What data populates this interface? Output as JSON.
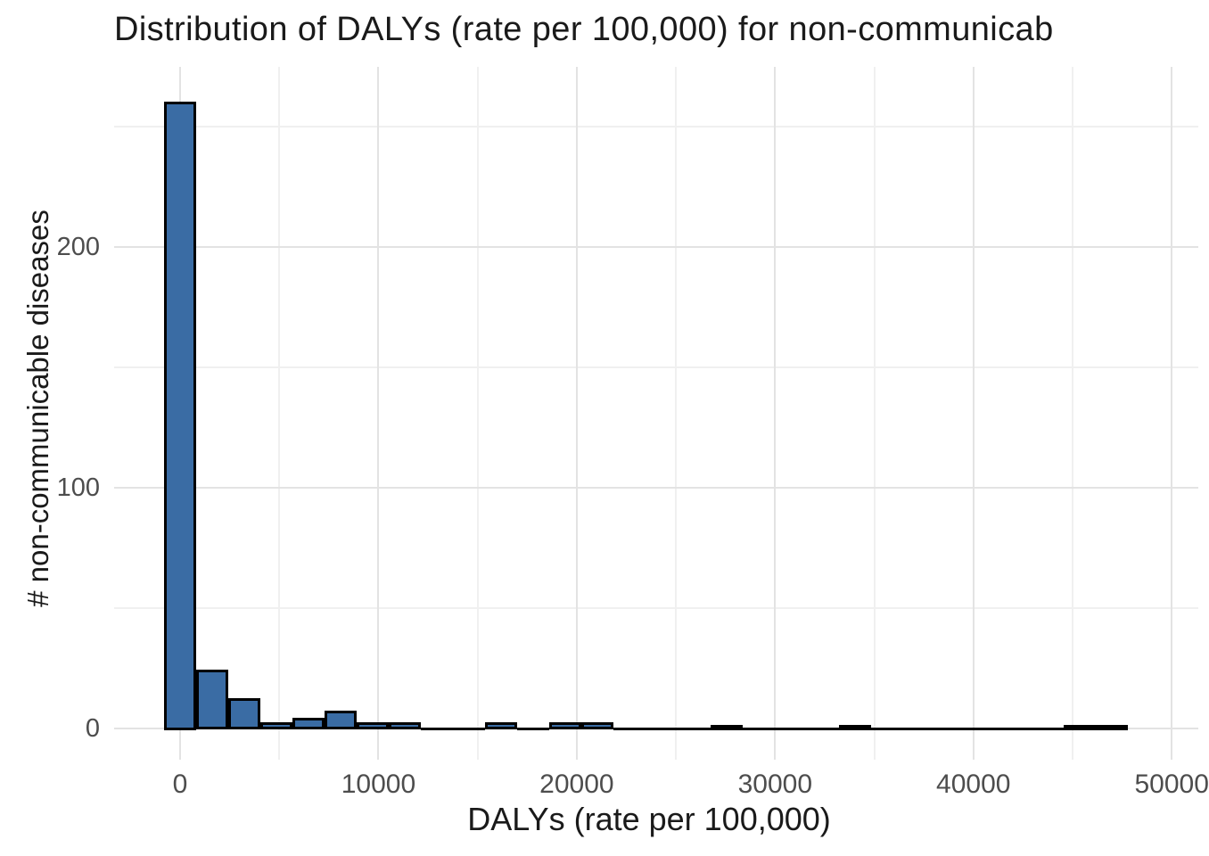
{
  "chart_data": {
    "type": "bar",
    "subtype": "histogram",
    "title": "Distribution of DALYs (rate per 100,000) for non-communicab",
    "xlabel": "DALYs (rate per 100,000)",
    "ylabel": "# non-communicable diseases",
    "bin_width": 1620,
    "bin_centers": [
      0,
      1620,
      3240,
      4860,
      6480,
      8100,
      9720,
      11340,
      12960,
      14580,
      16200,
      17820,
      19440,
      21060,
      22680,
      24300,
      25920,
      27540,
      29160,
      30780,
      32400,
      34020,
      35640,
      37260,
      38880,
      40500,
      42120,
      43740,
      45360,
      46980
    ],
    "counts": [
      260,
      24,
      12,
      2,
      4,
      7,
      2,
      2,
      0,
      0,
      2,
      0,
      2,
      2,
      0,
      0,
      0,
      1,
      0,
      0,
      0,
      1,
      0,
      0,
      0,
      0,
      0,
      0,
      1,
      1
    ],
    "x_ticks": [
      0,
      10000,
      20000,
      30000,
      40000,
      50000
    ],
    "x_tick_labels": [
      "0",
      "10000",
      "20000",
      "30000",
      "40000",
      "50000"
    ],
    "x_minor_ticks": [
      5000,
      15000,
      25000,
      35000,
      45000
    ],
    "y_ticks": [
      0,
      100,
      200
    ],
    "y_tick_labels": [
      "0",
      "100",
      "200"
    ],
    "y_minor_ticks": [
      50,
      150,
      250
    ],
    "xlim": [
      -3240,
      51350
    ],
    "ylim": [
      -13,
      275
    ],
    "grid": "major and minor, no axis lines, white background",
    "legend": "none",
    "colors": {
      "bar_fill": "#3A6CA4",
      "bar_stroke": "#000000",
      "grid_major": "#E3E3E3",
      "grid_minor": "#F0F0F0",
      "tick_label": "#4D4D4D",
      "title": "#1A1A1A",
      "background": "#FFFFFF"
    }
  }
}
